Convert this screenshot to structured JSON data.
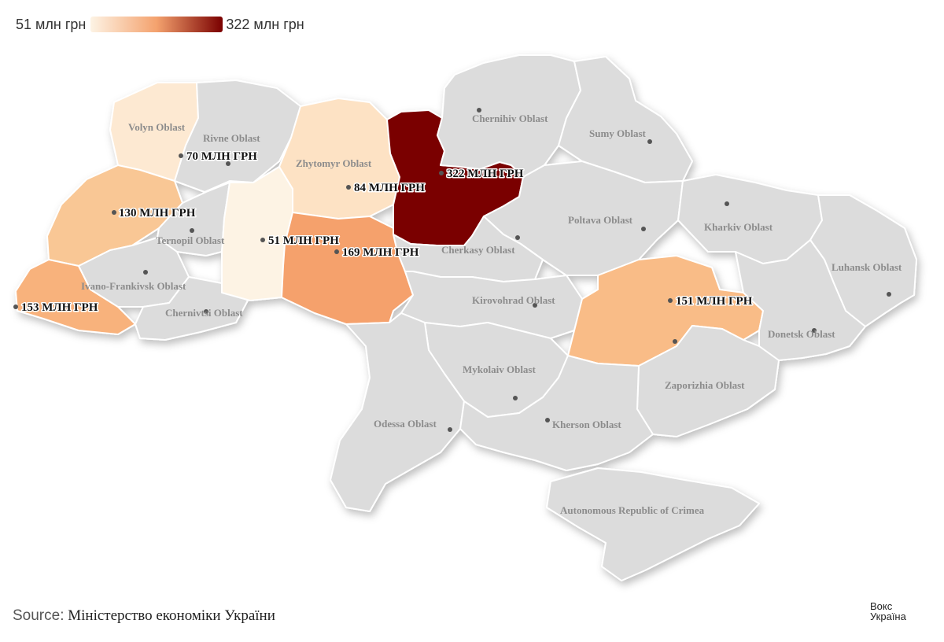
{
  "legend": {
    "min_label": "51 млн грн",
    "max_label": "322 млн грн",
    "min_color": "#fdf3e4",
    "mid_color": "#f4a26e",
    "max_color": "#7a0000"
  },
  "map": {
    "no_data_color": "#dcdcdc",
    "regions": [
      {
        "id": "volyn",
        "name": "Volyn Oblast",
        "value_label": "70 МЛН ГРН",
        "color": "#fde9d2"
      },
      {
        "id": "rivne",
        "name": "Rivne Oblast",
        "value_label": "",
        "color": "#dcdcdc"
      },
      {
        "id": "lviv",
        "name": "",
        "value_label": "130 МЛН ГРН",
        "color": "#f9c795"
      },
      {
        "id": "zakarpattia",
        "name": "",
        "value_label": "153 МЛН ГРН",
        "color": "#f8b27c"
      },
      {
        "id": "ternopil",
        "name": "Ternopil Oblast",
        "value_label": "",
        "color": "#dcdcdc"
      },
      {
        "id": "ivano-frankivsk",
        "name": "Ivano-Frankivsk Oblast",
        "value_label": "",
        "color": "#dcdcdc"
      },
      {
        "id": "chernivtsi",
        "name": "Chernivtsi Oblast",
        "value_label": "",
        "color": "#dcdcdc"
      },
      {
        "id": "khmelnytskyi",
        "name": "",
        "value_label": "51 МЛН ГРН",
        "color": "#fdf3e4"
      },
      {
        "id": "zhytomyr",
        "name": "Zhytomyr Oblast",
        "value_label": "84 МЛН ГРН",
        "color": "#fde2c4"
      },
      {
        "id": "vinnytsia",
        "name": "",
        "value_label": "169 МЛН ГРН",
        "color": "#f5a16c"
      },
      {
        "id": "kyiv",
        "name": "",
        "value_label": "322 МЛН ГРН",
        "color": "#7a0000"
      },
      {
        "id": "chernihiv",
        "name": "Chernihiv Oblast",
        "value_label": "",
        "color": "#dcdcdc"
      },
      {
        "id": "sumy",
        "name": "Sumy Oblast",
        "value_label": "",
        "color": "#dcdcdc"
      },
      {
        "id": "poltava",
        "name": "Poltava Oblast",
        "value_label": "",
        "color": "#dcdcdc"
      },
      {
        "id": "kharkiv",
        "name": "Kharkiv Oblast",
        "value_label": "",
        "color": "#dcdcdc"
      },
      {
        "id": "cherkasy",
        "name": "Cherkasy Oblast",
        "value_label": "",
        "color": "#dcdcdc"
      },
      {
        "id": "kirovohrad",
        "name": "Kirovohrad Oblast",
        "value_label": "",
        "color": "#dcdcdc"
      },
      {
        "id": "dnipropetrovsk",
        "name": "",
        "value_label": "151 МЛН ГРН",
        "color": "#f9bc87"
      },
      {
        "id": "luhansk",
        "name": "Luhansk Oblast",
        "value_label": "",
        "color": "#dcdcdc"
      },
      {
        "id": "donetsk",
        "name": "Donetsk Oblast",
        "value_label": "",
        "color": "#dcdcdc"
      },
      {
        "id": "zaporizhia",
        "name": "Zaporizhia Oblast",
        "value_label": "",
        "color": "#dcdcdc"
      },
      {
        "id": "mykolaiv",
        "name": "Mykolaiv Oblast",
        "value_label": "",
        "color": "#dcdcdc"
      },
      {
        "id": "odessa",
        "name": "Odessa Oblast",
        "value_label": "",
        "color": "#dcdcdc"
      },
      {
        "id": "kherson",
        "name": "Kherson Oblast",
        "value_label": "",
        "color": "#dcdcdc"
      },
      {
        "id": "crimea",
        "name": "Autonomous Republic of Crimea",
        "value_label": "",
        "color": "#dcdcdc"
      }
    ]
  },
  "source": {
    "label": "Source:",
    "text": "Міністерство економіки України"
  },
  "logo": {
    "line1": "Вокс",
    "line2": "Україна"
  }
}
